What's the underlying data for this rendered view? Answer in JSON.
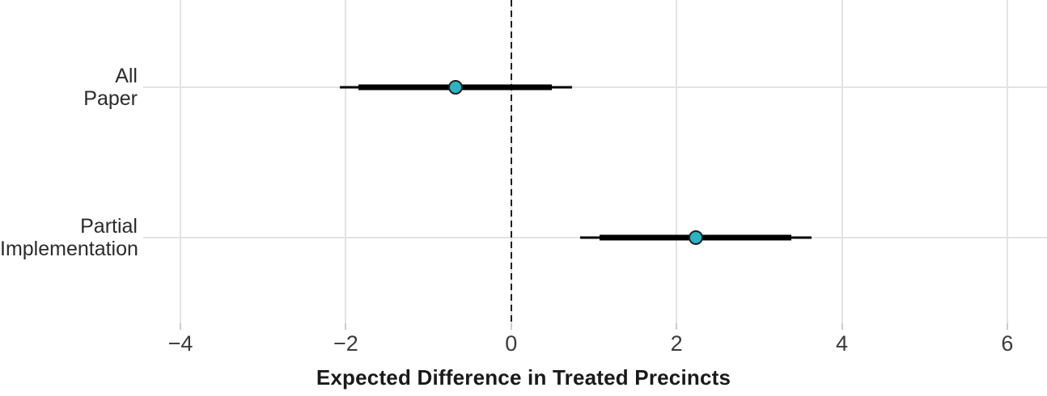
{
  "chart_data": {
    "type": "scatter",
    "subtype": "pointrange-coefficient-plot",
    "orientation": "horizontal",
    "title": "",
    "xlabel": "Expected Difference in Treated Precincts",
    "ylabel": "",
    "xlim": [
      -4.45,
      6.48
    ],
    "x_tick_values": [
      -4,
      -2,
      0,
      2,
      4,
      6
    ],
    "x_tick_labels": [
      "−4",
      "−2",
      "0",
      "2",
      "4",
      "6"
    ],
    "grid": "on",
    "reference_line_x": 0,
    "categories": [
      "All\nPaper",
      "Partial\nImplementation"
    ],
    "points": [
      {
        "category": "All\nPaper",
        "estimate": -0.67,
        "inner_interval": [
          -1.85,
          0.49
        ],
        "outer_interval": [
          -2.07,
          0.74
        ]
      },
      {
        "category": "Partial\nImplementation",
        "estimate": 2.23,
        "inner_interval": [
          1.07,
          3.39
        ],
        "outer_interval": [
          0.83,
          3.63
        ]
      }
    ],
    "colors": {
      "point_fill": "#2BB3C2",
      "point_stroke": "#1f1f1f",
      "interval": "#000000",
      "gridline": "#e3e3e3",
      "tick_mark": "#cccccc",
      "tick_label": "#3a3a3a",
      "category_label": "#2b2b2b",
      "axis_title": "#1a1a1a",
      "reference_line": "#1f1f1f",
      "background": "#ffffff"
    }
  }
}
